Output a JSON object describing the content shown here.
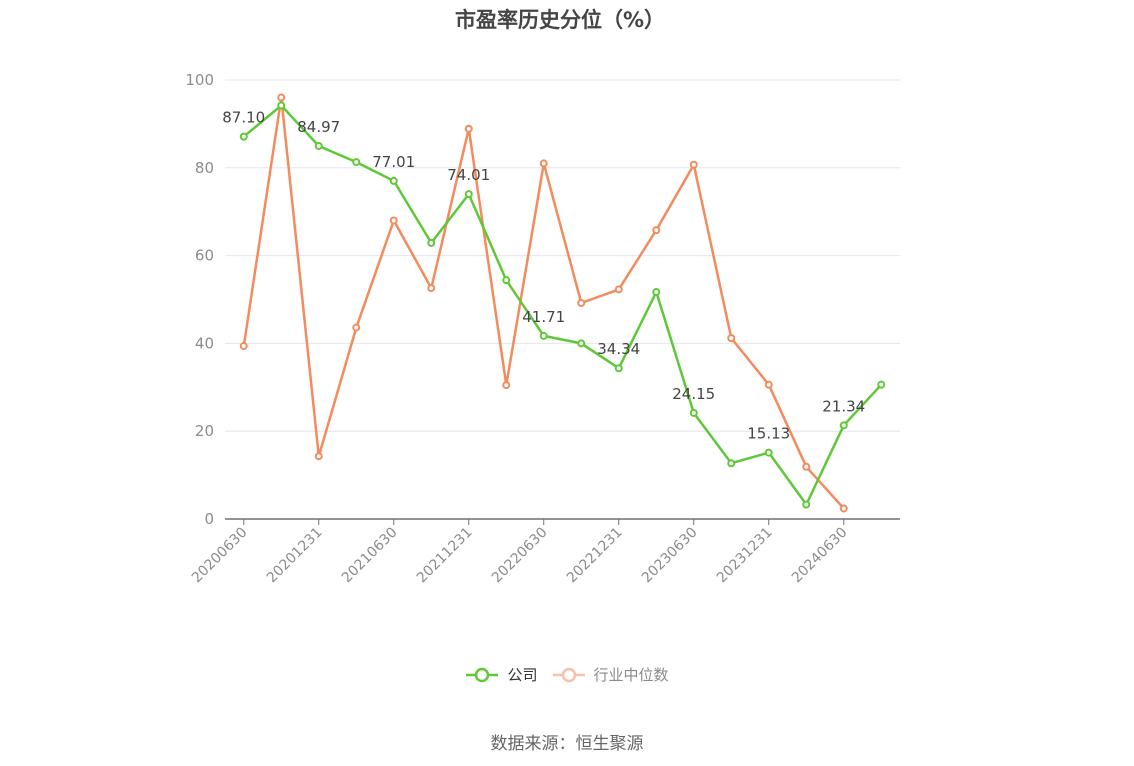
{
  "chart_data": {
    "type": "line",
    "title": "市盈率历史分位（%）",
    "x": [
      "20200630",
      "20200930",
      "20201231",
      "20210331",
      "20210630",
      "20210930",
      "20211231",
      "20220331",
      "20220630",
      "20220930",
      "20221231",
      "20230331",
      "20230630",
      "20230930",
      "20231231",
      "20240331",
      "20240630",
      "20240930"
    ],
    "x_tick_labels": [
      "20200630",
      "20201231",
      "20210630",
      "20211231",
      "20220630",
      "20221231",
      "20230630",
      "20231231",
      "20240630"
    ],
    "ylim": [
      0,
      100
    ],
    "y_ticks": [
      0,
      20,
      40,
      60,
      80,
      100
    ],
    "grid": true,
    "legend": "bottom-center",
    "series": [
      {
        "name": "公司",
        "color": "#5ec837",
        "values": [
          87.1,
          94.2,
          84.97,
          81.3,
          77.01,
          62.9,
          74.01,
          54.4,
          41.71,
          40.0,
          34.34,
          51.7,
          24.15,
          12.7,
          15.13,
          3.3,
          21.34,
          30.6
        ],
        "data_labels": [
          "87.10",
          null,
          "84.97",
          null,
          "77.01",
          null,
          "74.01",
          null,
          "41.71",
          null,
          "34.34",
          null,
          "24.15",
          null,
          "15.13",
          null,
          "21.34",
          null
        ]
      },
      {
        "name": "行业中位数",
        "color": "#f28b5d",
        "values": [
          39.4,
          96.0,
          14.3,
          43.6,
          68.0,
          52.6,
          88.9,
          30.5,
          81.0,
          49.2,
          52.3,
          65.8,
          80.7,
          41.2,
          30.6,
          11.9,
          2.4,
          null
        ]
      }
    ]
  },
  "source": "数据来源：恒生聚源"
}
